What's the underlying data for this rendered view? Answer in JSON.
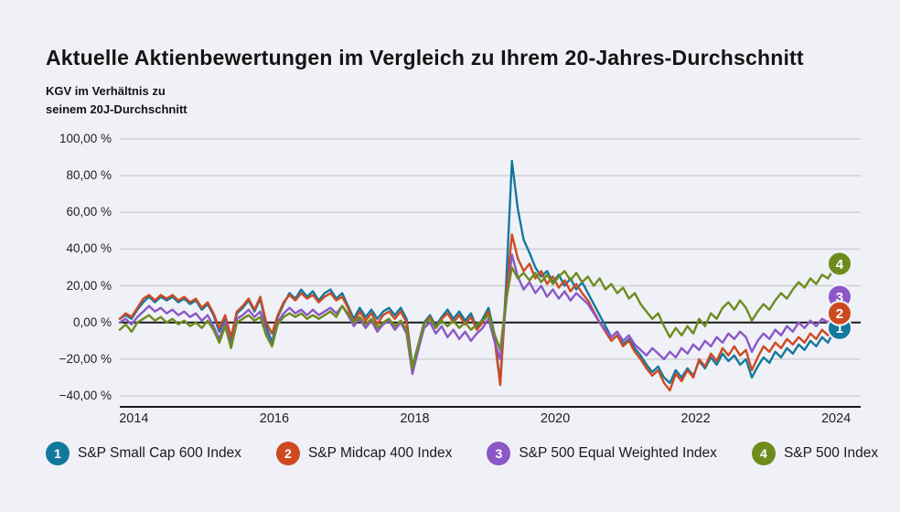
{
  "title": "Aktuelle Aktienbewertungen im Vergleich zu Ihrem 20-Jahres-Durchschnitt",
  "subtitle": "KGV im Verhältnis zu\nseinem 20J-Durchschnitt",
  "colors": {
    "background": "#eff1f6",
    "grid": "#c9cbce",
    "zero_line": "#1a1a1a",
    "axis_line": "#1a1a1a",
    "text": "#1a1a1a",
    "series_teal": "#12799e",
    "series_red": "#cd4a21",
    "series_purple": "#8c57c7",
    "series_green": "#6e8b1d"
  },
  "chart_data": {
    "type": "line",
    "title": "Aktuelle Aktienbewertungen im Vergleich zu Ihrem 20-Jahres-Durchschnitt",
    "ylabel": "KGV im Verhältnis zu seinem 20J-Durchschnitt",
    "xlabel": "",
    "grid": true,
    "legend_position": "bottom",
    "x_range": [
      2013.8,
      2024.35
    ],
    "y_range": [
      -40,
      100
    ],
    "x_ticks": {
      "values": [
        2014,
        2016,
        2018,
        2020,
        2022,
        2024
      ],
      "labels": [
        "2014",
        "2016",
        "2018",
        "2020",
        "2022",
        "2024"
      ]
    },
    "y_ticks": {
      "values": [
        100,
        80,
        60,
        40,
        20,
        0,
        -20,
        -40
      ],
      "labels": [
        "100,00 %",
        "80,00 %",
        "60,00 %",
        "40,00 %",
        "20,00 %",
        "0,00 %",
        "−20,00 %",
        "−40,00 %"
      ]
    },
    "x0": 2013.8,
    "dx": 0.0833333,
    "series": [
      {
        "number": "1",
        "name": "S&P Small Cap 600 Index",
        "color": "#12799e",
        "end_value": -3,
        "values": [
          2,
          4,
          2,
          7,
          11,
          14,
          11,
          14,
          12,
          14,
          11,
          13,
          10,
          12,
          7,
          10,
          4,
          -5,
          3,
          -10,
          5,
          8,
          12,
          6,
          13,
          -2,
          -11,
          3,
          10,
          16,
          13,
          18,
          14,
          17,
          12,
          16,
          18,
          13,
          16,
          9,
          2,
          8,
          3,
          7,
          2,
          6,
          8,
          4,
          8,
          2,
          -24,
          -12,
          0,
          4,
          -2,
          3,
          7,
          2,
          6,
          1,
          5,
          -3,
          2,
          8,
          -6,
          -33,
          20,
          88,
          62,
          45,
          38,
          30,
          25,
          28,
          22,
          26,
          20,
          24,
          18,
          22,
          16,
          10,
          4,
          -2,
          -8,
          -5,
          -12,
          -9,
          -14,
          -18,
          -23,
          -27,
          -24,
          -30,
          -33,
          -26,
          -30,
          -25,
          -29,
          -21,
          -25,
          -19,
          -23,
          -17,
          -21,
          -18,
          -23,
          -20,
          -30,
          -24,
          -19,
          -22,
          -16,
          -19,
          -14,
          -17,
          -12,
          -15,
          -10,
          -13,
          -8,
          -11,
          -5,
          -3
        ]
      },
      {
        "number": "2",
        "name": "S&P Midcap 400 Index",
        "color": "#cd4a21",
        "end_value": 5,
        "values": [
          2,
          5,
          3,
          8,
          13,
          15,
          12,
          15,
          13,
          15,
          12,
          14,
          11,
          13,
          8,
          11,
          5,
          -3,
          4,
          -8,
          6,
          9,
          13,
          7,
          14,
          0,
          -6,
          4,
          11,
          15,
          12,
          16,
          13,
          15,
          11,
          14,
          16,
          12,
          14,
          8,
          0,
          6,
          1,
          5,
          -1,
          4,
          6,
          2,
          6,
          0,
          -26,
          -13,
          -1,
          3,
          -3,
          2,
          5,
          0,
          4,
          -1,
          3,
          -4,
          0,
          6,
          -8,
          -34,
          15,
          48,
          35,
          28,
          32,
          24,
          28,
          21,
          25,
          19,
          23,
          17,
          21,
          16,
          12,
          6,
          0,
          -5,
          -10,
          -7,
          -13,
          -10,
          -16,
          -20,
          -25,
          -29,
          -26,
          -33,
          -37,
          -28,
          -32,
          -26,
          -30,
          -20,
          -24,
          -17,
          -21,
          -14,
          -18,
          -13,
          -18,
          -15,
          -26,
          -19,
          -13,
          -16,
          -11,
          -14,
          -9,
          -12,
          -8,
          -11,
          -6,
          -9,
          -4,
          -7,
          0,
          5
        ]
      },
      {
        "number": "3",
        "name": "S&P 500 Equal Weighted Index",
        "color": "#8c57c7",
        "end_value": 14,
        "values": [
          0,
          2,
          -1,
          3,
          6,
          9,
          6,
          8,
          5,
          7,
          4,
          6,
          3,
          5,
          1,
          4,
          -2,
          -9,
          0,
          -13,
          2,
          4,
          7,
          3,
          6,
          -5,
          -13,
          0,
          5,
          8,
          5,
          7,
          4,
          7,
          4,
          6,
          8,
          5,
          9,
          4,
          -2,
          2,
          -3,
          1,
          -5,
          -1,
          1,
          -4,
          0,
          -6,
          -28,
          -15,
          -3,
          0,
          -6,
          -2,
          -8,
          -4,
          -9,
          -5,
          -10,
          -6,
          -3,
          2,
          -10,
          -20,
          10,
          37,
          25,
          18,
          22,
          16,
          20,
          14,
          18,
          13,
          17,
          12,
          16,
          13,
          10,
          5,
          0,
          -4,
          -8,
          -5,
          -10,
          -7,
          -12,
          -15,
          -18,
          -14,
          -17,
          -20,
          -16,
          -19,
          -14,
          -17,
          -12,
          -15,
          -10,
          -13,
          -8,
          -11,
          -6,
          -9,
          -5,
          -8,
          -16,
          -10,
          -6,
          -9,
          -4,
          -7,
          -2,
          -5,
          0,
          -3,
          1,
          -2,
          2,
          0,
          4,
          14
        ]
      },
      {
        "number": "4",
        "name": "S&P 500 Index",
        "color": "#6e8b1d",
        "end_value": 32,
        "values": [
          -4,
          -1,
          -5,
          0,
          2,
          4,
          1,
          3,
          0,
          2,
          -1,
          1,
          -2,
          0,
          -3,
          1,
          -4,
          -11,
          -2,
          -14,
          0,
          2,
          4,
          1,
          3,
          -7,
          -13,
          -1,
          3,
          5,
          3,
          5,
          2,
          4,
          2,
          4,
          6,
          3,
          9,
          5,
          0,
          3,
          -1,
          2,
          -3,
          0,
          2,
          -2,
          1,
          -4,
          -25,
          -12,
          -1,
          2,
          -3,
          1,
          -2,
          1,
          -3,
          0,
          -4,
          -1,
          1,
          4,
          -6,
          -15,
          12,
          30,
          24,
          27,
          23,
          27,
          22,
          26,
          21,
          25,
          28,
          23,
          27,
          22,
          25,
          20,
          24,
          18,
          21,
          16,
          19,
          13,
          16,
          10,
          6,
          2,
          5,
          -2,
          -8,
          -3,
          -7,
          -2,
          -6,
          2,
          -2,
          5,
          2,
          8,
          11,
          7,
          12,
          8,
          1,
          6,
          10,
          7,
          12,
          16,
          13,
          18,
          22,
          19,
          24,
          21,
          26,
          24,
          29,
          32
        ]
      }
    ]
  }
}
